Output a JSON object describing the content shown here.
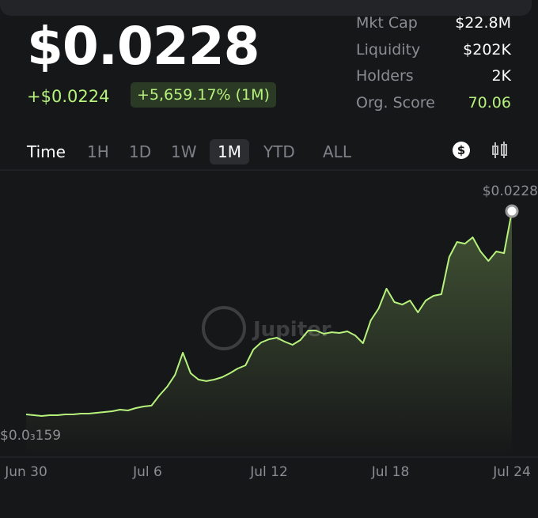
{
  "header": {
    "price": "$0.0228",
    "change": "+$0.0224",
    "change_pct": "+5,659.17% (1M)"
  },
  "stats": [
    {
      "label": "Mkt Cap",
      "value": "$22.8M"
    },
    {
      "label": "Liquidity",
      "value": "$202K"
    },
    {
      "label": "Holders",
      "value": "2K"
    },
    {
      "label": "Org. Score",
      "value": "70.06"
    }
  ],
  "tabs": [
    "Time",
    "1H",
    "1D",
    "1W",
    "1M",
    "YTD",
    "ALL"
  ],
  "watermark": "Jupiter",
  "chart_data": {
    "type": "line",
    "color": "#b6f27c",
    "xticks": [
      "Jun 30",
      "Jul 6",
      "Jul 12",
      "Jul 18",
      "Jul 24"
    ],
    "ylim": [
      0.000159,
      0.0228
    ],
    "yticks": [
      {
        "value": 0.0228,
        "label": "$0.0228"
      },
      {
        "value": 0.000159,
        "label": "$0.0₃159"
      }
    ],
    "values": [
      0.00033,
      0.00025,
      0.000159,
      0.00025,
      0.00025,
      0.00033,
      0.00033,
      0.00042,
      0.00042,
      0.00051,
      0.0006,
      0.00068,
      0.00086,
      0.00077,
      0.00103,
      0.00121,
      0.0013,
      0.00243,
      0.00339,
      0.0047,
      0.00715,
      0.00488,
      0.00418,
      0.00401,
      0.00418,
      0.00444,
      0.00488,
      0.0054,
      0.00575,
      0.0075,
      0.00829,
      0.00864,
      0.00881,
      0.00838,
      0.00803,
      0.00855,
      0.0096,
      0.0096,
      0.00925,
      0.00942,
      0.00934,
      0.00951,
      0.00907,
      0.0082,
      0.01074,
      0.01205,
      0.01423,
      0.01275,
      0.01248,
      0.01292,
      0.01161,
      0.01292,
      0.01345,
      0.01362,
      0.01773,
      0.01939,
      0.01921,
      0.01991,
      0.01834,
      0.01729,
      0.01834,
      0.01816,
      0.0228
    ]
  }
}
